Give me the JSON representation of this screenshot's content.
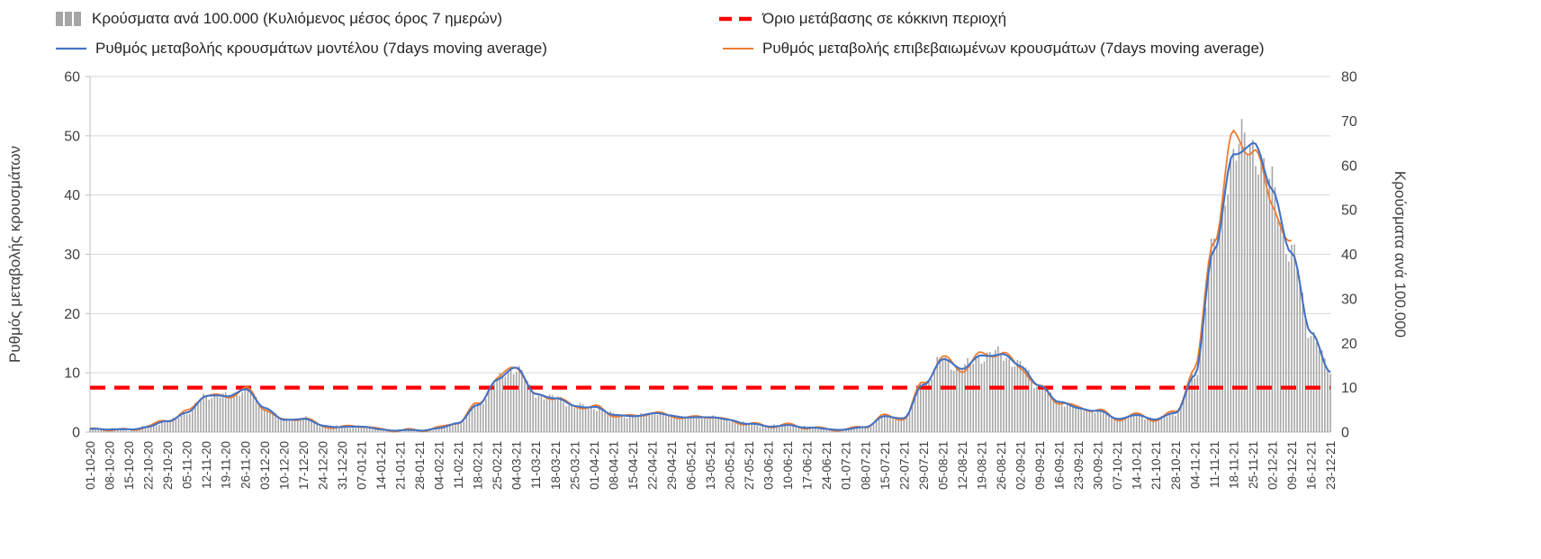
{
  "page": {
    "background": "#ffffff"
  },
  "legend": {
    "position": "top",
    "items": [
      {
        "label": "Κρούσματα ανά 100.000 (Κυλιόμενος μέσος όρος 7 ημερών)",
        "swatch": "gray-bars",
        "color": "#a6a6a6"
      },
      {
        "label": "Όριο μετάβασης σε κόκκινη περιοχή",
        "swatch": "red-dashed-line",
        "color": "#ff0000"
      },
      {
        "label": "Ρυθμός μεταβολής κρουσμάτων μοντέλου (7days moving average)",
        "swatch": "blue-line",
        "color": "#4472c4"
      },
      {
        "label": "Ρυθμός μεταβολής επιβεβαιωμένων κρουσμάτων (7days moving average)",
        "swatch": "orange-line",
        "color": "#ed7d31"
      }
    ]
  },
  "chart_data": {
    "type": "combo",
    "grid": "horizontal",
    "legend_position": "top",
    "x_note": "daily bars from 01-10-20 to 23-12-21; series values estimated at the weekly x-axis ticks",
    "x": [
      "01-10-20",
      "08-10-20",
      "15-10-20",
      "22-10-20",
      "29-10-20",
      "05-11-20",
      "12-11-20",
      "19-11-20",
      "26-11-20",
      "03-12-20",
      "10-12-20",
      "17-12-20",
      "24-12-20",
      "31-12-20",
      "07-01-21",
      "14-01-21",
      "21-01-21",
      "28-01-21",
      "04-02-21",
      "11-02-21",
      "18-02-21",
      "25-02-21",
      "04-03-21",
      "11-03-21",
      "18-03-21",
      "25-03-21",
      "01-04-21",
      "08-04-21",
      "15-04-21",
      "22-04-21",
      "29-04-21",
      "06-05-21",
      "13-05-21",
      "20-05-21",
      "27-05-21",
      "03-06-21",
      "10-06-21",
      "17-06-21",
      "24-06-21",
      "01-07-21",
      "08-07-21",
      "15-07-21",
      "22-07-21",
      "29-07-21",
      "05-08-21",
      "12-08-21",
      "19-08-21",
      "26-08-21",
      "02-09-21",
      "09-09-21",
      "16-09-21",
      "23-09-21",
      "30-09-21",
      "07-10-21",
      "14-10-21",
      "21-10-21",
      "28-10-21",
      "04-11-21",
      "11-11-21",
      "18-11-21",
      "25-11-21",
      "02-12-21",
      "09-12-21",
      "16-12-21",
      "23-12-21"
    ],
    "axes": {
      "left": {
        "title": "Ρυθμός μεταβολής κρουσμάτων",
        "range": [
          0,
          60
        ],
        "tick_step": 10
      },
      "right": {
        "title": "Κρούσματα ανά 100.000",
        "range": [
          0,
          80
        ],
        "tick_step": 10
      }
    },
    "threshold_line": {
      "label": "Όριο μετάβασης σε κόκκινη περιοχή",
      "axis": "right",
      "value": 10,
      "style": "dashed",
      "color": "#ff0000"
    },
    "series": [
      {
        "name": "Κρούσματα ανά 100.000 (Κυλιόμενος μέσος όρος 7 ημερών)",
        "kind": "bar",
        "axis": "right",
        "color": "#a6a6a6",
        "values": [
          0.7,
          0.7,
          0.5,
          1.2,
          2.5,
          4.3,
          8.3,
          8.0,
          9.6,
          5.6,
          2.7,
          3.1,
          1.5,
          1.1,
          1.3,
          0.5,
          0.4,
          0.4,
          0.8,
          2.1,
          6.0,
          11.7,
          14.7,
          8.4,
          7.7,
          5.9,
          5.6,
          4.0,
          3.5,
          4.3,
          3.7,
          3.2,
          3.5,
          2.7,
          1.9,
          1.3,
          1.5,
          1.1,
          0.7,
          0.5,
          1.2,
          3.5,
          3.2,
          10.7,
          16.3,
          14.4,
          17.1,
          17.6,
          14.9,
          10.3,
          6.9,
          5.3,
          4.8,
          3.1,
          3.7,
          2.9,
          4.3,
          12.7,
          41.3,
          63.0,
          65.3,
          54.7,
          40.0,
          22.7,
          13.3
        ]
      },
      {
        "name": "Ρυθμός μεταβολής κρουσμάτων μοντέλου (7days moving average)",
        "kind": "line",
        "axis": "left",
        "color": "#4472c4",
        "values": [
          0.5,
          0.5,
          0.4,
          0.9,
          1.9,
          3.2,
          6.2,
          6.0,
          7.2,
          4.2,
          2.0,
          2.3,
          1.1,
          0.8,
          1.0,
          0.4,
          0.3,
          0.3,
          0.6,
          1.6,
          4.5,
          8.8,
          11.0,
          6.3,
          5.8,
          4.4,
          4.2,
          3.0,
          2.6,
          3.2,
          2.8,
          2.4,
          2.6,
          2.0,
          1.4,
          1.0,
          1.1,
          0.8,
          0.5,
          0.4,
          0.9,
          2.6,
          2.4,
          8.0,
          12.2,
          10.8,
          12.8,
          13.2,
          11.2,
          7.7,
          5.2,
          4.0,
          3.6,
          2.3,
          2.8,
          2.2,
          3.2,
          9.5,
          31.0,
          46.5,
          49.0,
          41.0,
          30.0,
          17.0,
          10.0
        ]
      },
      {
        "name": "Ρυθμός μεταβολής επιβεβαιωμένων κρουσμάτων (7days moving average)",
        "kind": "line",
        "axis": "left",
        "color": "#ed7d31",
        "values": [
          0.4,
          0.5,
          0.3,
          1.0,
          2.0,
          3.4,
          6.4,
          5.8,
          7.4,
          4.0,
          1.9,
          2.4,
          1.0,
          0.8,
          1.1,
          0.4,
          0.3,
          0.3,
          0.7,
          1.7,
          4.7,
          9.0,
          11.2,
          6.1,
          5.9,
          4.3,
          4.3,
          2.9,
          2.6,
          3.3,
          2.7,
          2.4,
          2.7,
          1.9,
          1.4,
          1.0,
          1.2,
          0.8,
          0.5,
          0.4,
          1.0,
          2.7,
          2.3,
          8.4,
          12.4,
          10.6,
          13.0,
          13.4,
          11.0,
          7.5,
          5.1,
          4.1,
          3.7,
          2.2,
          2.9,
          2.1,
          3.4,
          10.5,
          33.0,
          49.5,
          48.0,
          38.5,
          31.5,
          null,
          null
        ]
      }
    ]
  }
}
